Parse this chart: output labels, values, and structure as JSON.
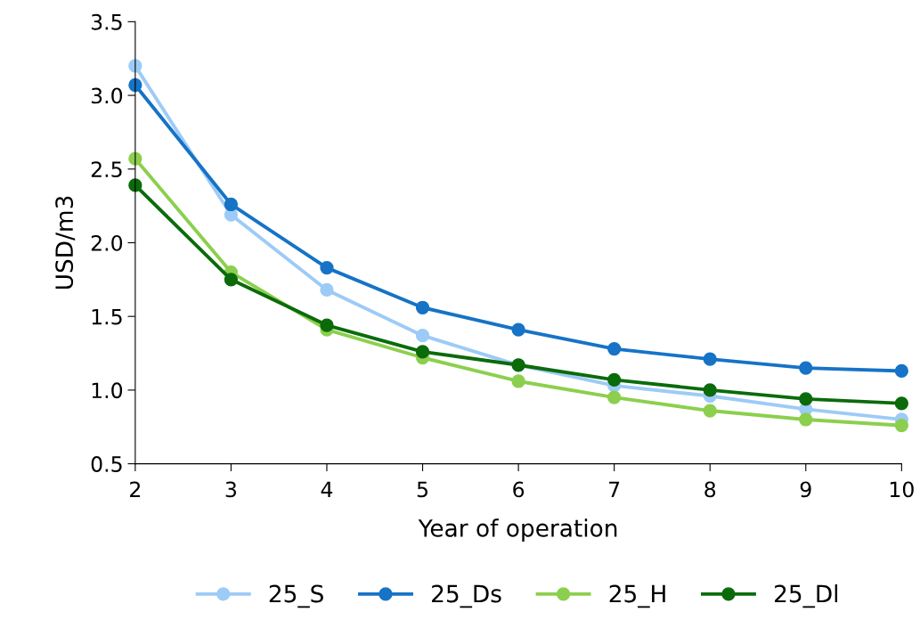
{
  "chart_data": {
    "type": "line",
    "xlabel": "Year of operation",
    "ylabel": "USD/m3",
    "x": [
      2,
      3,
      4,
      5,
      6,
      7,
      8,
      9,
      10
    ],
    "series": [
      {
        "name": "25_S",
        "color": "#9dcbf7",
        "values": [
          3.2,
          2.19,
          1.68,
          1.37,
          1.17,
          1.03,
          0.96,
          0.87,
          0.8
        ]
      },
      {
        "name": "25_Ds",
        "color": "#1673c6",
        "values": [
          3.07,
          2.26,
          1.83,
          1.56,
          1.41,
          1.28,
          1.21,
          1.15,
          1.13
        ]
      },
      {
        "name": "25_H",
        "color": "#8ccf4e",
        "values": [
          2.57,
          1.8,
          1.41,
          1.22,
          1.06,
          0.95,
          0.86,
          0.8,
          0.76
        ]
      },
      {
        "name": "25_Dl",
        "color": "#0b6b0b",
        "values": [
          2.39,
          1.75,
          1.44,
          1.26,
          1.17,
          1.07,
          1.0,
          0.94,
          0.91
        ]
      }
    ],
    "xlim": [
      2,
      10
    ],
    "xticks": [
      2,
      3,
      4,
      5,
      6,
      7,
      8,
      9,
      10
    ],
    "ylim": [
      0.5,
      3.5
    ],
    "yticks": [
      {
        "value": 0.5,
        "label": "0.5"
      },
      {
        "value": 1.0,
        "label": "1.0"
      },
      {
        "value": 1.5,
        "label": "1.5"
      },
      {
        "value": 2.0,
        "label": "2.0"
      },
      {
        "value": 2.5,
        "label": "2.5"
      },
      {
        "value": 3.0,
        "label": "3.0"
      },
      {
        "value": 3.5,
        "label": "3.5"
      }
    ],
    "grid": false,
    "legend": "bottom",
    "marker": "circle",
    "line_style": "solid"
  }
}
